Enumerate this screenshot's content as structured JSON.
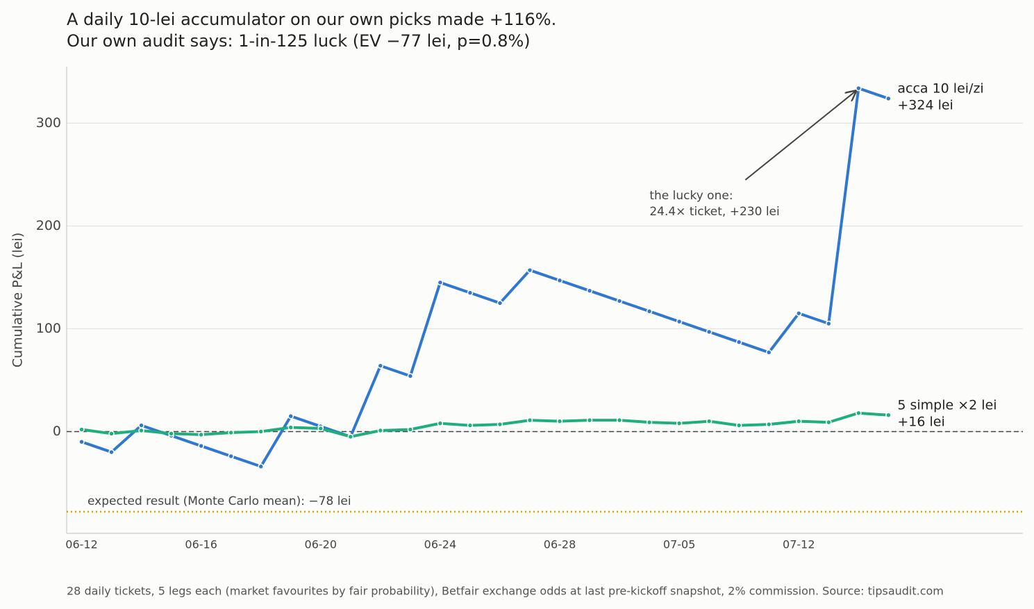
{
  "chart_data": {
    "type": "line",
    "title": [
      "A daily 10-lei accumulator on our own picks made +116%.",
      "Our own audit says: 1-in-125 luck (EV −77 lei, p=0.8%)"
    ],
    "ylabel": "Cumulative P&L (lei)",
    "footnote": "28 daily tickets, 5 legs each (market favourites by fair probability), Betfair exchange odds at last pre-kickoff snapshot, 2% commission. Source: tipsaudit.com",
    "categories": [
      "06-12",
      null,
      null,
      null,
      "06-16",
      null,
      null,
      null,
      "06-20",
      null,
      null,
      null,
      "06-24",
      null,
      null,
      null,
      "06-28",
      null,
      null,
      null,
      "07-05",
      null,
      null,
      null,
      "07-12",
      null,
      null,
      null
    ],
    "series": [
      {
        "name": "acca 10 lei/zi",
        "end_label": "+324 lei",
        "color": "#2f77d0",
        "values": [
          -10,
          -20,
          6,
          -4,
          -14,
          -24,
          -34,
          15,
          5,
          -5,
          64,
          54,
          145,
          135,
          125,
          157,
          147,
          137,
          127,
          117,
          107,
          97,
          87,
          77,
          115,
          105,
          334,
          324
        ]
      },
      {
        "name": "5 simple ×2 lei",
        "end_label": "+16 lei",
        "color": "#1fae7f",
        "values": [
          2,
          -2,
          1,
          -2,
          -3,
          -1,
          0,
          4,
          3,
          -5,
          1,
          2,
          8,
          6,
          7,
          11,
          10,
          11,
          11,
          9,
          8,
          10,
          6,
          7,
          10,
          9,
          18,
          16
        ]
      }
    ],
    "reference_lines": [
      {
        "value": 0,
        "style": "dashed",
        "color": "#444444"
      },
      {
        "value": -78,
        "style": "dotted",
        "color": "#e69f00",
        "label": "expected result (Monte Carlo mean): −78 lei"
      }
    ],
    "annotation": {
      "text": [
        "the lucky one:",
        "24.4× ticket, +230 lei"
      ],
      "series": 0,
      "index": 26
    },
    "ylim": [
      -99,
      355
    ],
    "yticks": [
      0,
      100,
      200,
      300
    ],
    "grid": true
  }
}
